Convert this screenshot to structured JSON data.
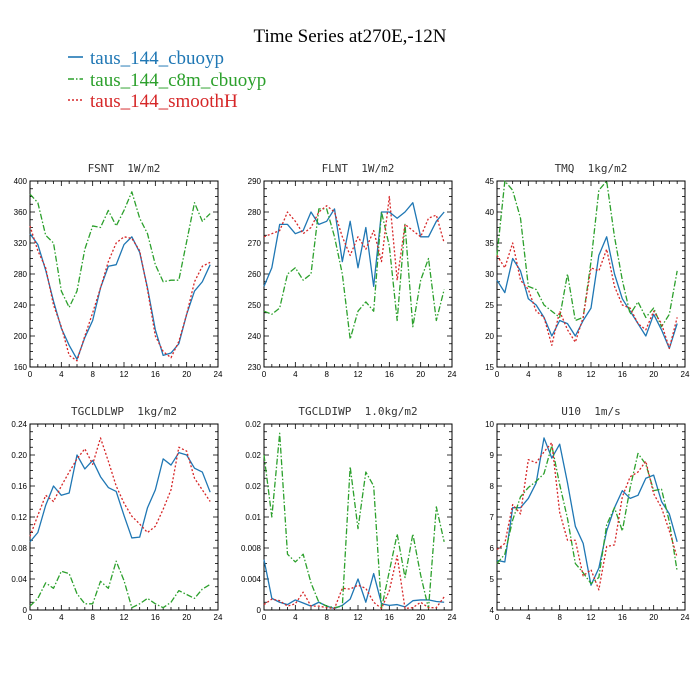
{
  "figure": {
    "title": "Time Series at270E,-12N",
    "legend": [
      {
        "name": "taus_144_cbuoyp",
        "color": "#1f77b4",
        "dash": "solid"
      },
      {
        "name": "taus_144_c8m_cbuoyp",
        "color": "#2ca02c",
        "dash": "dashdot"
      },
      {
        "name": "taus_144_smoothH",
        "color": "#d62728",
        "dash": "dotted"
      }
    ]
  },
  "chart_data": [
    {
      "type": "line",
      "title": "FSNT  1W/m2",
      "x": [
        0,
        1,
        2,
        3,
        4,
        5,
        6,
        7,
        8,
        9,
        10,
        11,
        12,
        13,
        14,
        15,
        16,
        17,
        18,
        19,
        20,
        21,
        22,
        23
      ],
      "xlim": [
        0,
        24
      ],
      "xticks": [
        0,
        4,
        8,
        12,
        16,
        20,
        24
      ],
      "ylim": [
        160,
        400
      ],
      "yticks": [
        160,
        200,
        240,
        280,
        320,
        360,
        400
      ],
      "series": [
        {
          "name": "taus_144_cbuoyp",
          "values": [
            332,
            318,
            285,
            245,
            210,
            188,
            170,
            198,
            220,
            262,
            290,
            292,
            318,
            328,
            308,
            262,
            208,
            175,
            178,
            190,
            228,
            258,
            270,
            292
          ]
        },
        {
          "name": "taus_144_c8m_cbuoyp",
          "values": [
            383,
            372,
            330,
            320,
            258,
            237,
            258,
            312,
            342,
            340,
            362,
            342,
            362,
            386,
            352,
            332,
            292,
            270,
            272,
            272,
            322,
            372,
            348,
            358
          ]
        },
        {
          "name": "taus_144_smoothH",
          "values": [
            342,
            310,
            288,
            240,
            212,
            175,
            168,
            200,
            230,
            262,
            296,
            320,
            328,
            326,
            310,
            260,
            200,
            180,
            172,
            193,
            228,
            270,
            290,
            295
          ]
        }
      ]
    },
    {
      "type": "line",
      "title": "FLNT  1W/m2",
      "x": [
        0,
        1,
        2,
        3,
        4,
        5,
        6,
        7,
        8,
        9,
        10,
        11,
        12,
        13,
        14,
        15,
        16,
        17,
        18,
        19,
        20,
        21,
        22,
        23
      ],
      "xlim": [
        0,
        24
      ],
      "xticks": [
        0,
        4,
        8,
        12,
        16,
        20,
        24
      ],
      "ylim": [
        230,
        290
      ],
      "yticks": [
        230,
        240,
        250,
        260,
        270,
        280,
        290
      ],
      "series": [
        {
          "name": "taus_144_cbuoyp",
          "values": [
            256,
            262,
            276,
            276,
            273,
            274,
            280,
            276,
            277,
            281,
            264,
            277,
            262,
            275,
            256,
            280,
            280,
            278,
            280,
            283,
            272,
            272,
            277,
            280
          ]
        },
        {
          "name": "taus_144_c8m_cbuoyp",
          "values": [
            248,
            247,
            249,
            260,
            262,
            258,
            260,
            281,
            281,
            272,
            260,
            239,
            248,
            251,
            248,
            280,
            269,
            245,
            276,
            243,
            258,
            265,
            245,
            255
          ]
        },
        {
          "name": "taus_144_smoothH",
          "values": [
            272,
            273,
            274,
            280,
            277,
            273,
            275,
            280,
            282,
            280,
            272,
            266,
            272,
            268,
            274,
            264,
            285,
            258,
            276,
            274,
            272,
            278,
            279,
            270
          ]
        }
      ]
    },
    {
      "type": "line",
      "title": "TMQ  1kg/m2",
      "x": [
        0,
        1,
        2,
        3,
        4,
        5,
        6,
        7,
        8,
        9,
        10,
        11,
        12,
        13,
        14,
        15,
        16,
        17,
        18,
        19,
        20,
        21,
        22,
        23
      ],
      "xlim": [
        0,
        24
      ],
      "xticks": [
        0,
        4,
        8,
        12,
        16,
        20,
        24
      ],
      "ylim": [
        15,
        45
      ],
      "yticks": [
        15,
        20,
        25,
        30,
        35,
        40,
        45
      ],
      "series": [
        {
          "name": "taus_144_cbuoyp",
          "values": [
            29,
            27,
            32.5,
            30.5,
            26,
            25,
            23,
            20,
            22.5,
            22,
            20,
            22.5,
            24.5,
            33,
            36,
            30,
            26,
            24,
            22,
            20,
            23.5,
            21,
            18,
            22
          ]
        },
        {
          "name": "taus_144_c8m_cbuoyp",
          "values": [
            33,
            45,
            43.5,
            39,
            28,
            27.5,
            25,
            24,
            23,
            30,
            22.5,
            23,
            32,
            43.5,
            45,
            36,
            29,
            23.5,
            25.5,
            23,
            24.5,
            21.5,
            23.5,
            30.5
          ]
        },
        {
          "name": "taus_144_smoothH",
          "values": [
            33,
            31,
            35,
            29,
            27.5,
            24,
            23,
            18.5,
            24,
            21,
            19,
            23,
            31,
            30.5,
            34,
            28,
            25,
            24.5,
            22,
            21,
            24,
            22,
            18,
            23
          ]
        }
      ]
    },
    {
      "type": "line",
      "title": "TGCLDLWP  1kg/m2",
      "x": [
        0,
        1,
        2,
        3,
        4,
        5,
        6,
        7,
        8,
        9,
        10,
        11,
        12,
        13,
        14,
        15,
        16,
        17,
        18,
        19,
        20,
        21,
        22,
        23
      ],
      "xlim": [
        0,
        24
      ],
      "xticks": [
        0,
        4,
        8,
        12,
        16,
        20,
        24
      ],
      "ylim": [
        0,
        0.24
      ],
      "yticks": [
        0,
        0.04,
        0.08,
        0.12,
        0.16,
        0.2,
        0.24
      ],
      "series": [
        {
          "name": "taus_144_cbuoyp",
          "values": [
            0.088,
            0.1,
            0.135,
            0.16,
            0.148,
            0.151,
            0.2,
            0.182,
            0.193,
            0.172,
            0.158,
            0.153,
            0.122,
            0.093,
            0.094,
            0.132,
            0.155,
            0.195,
            0.187,
            0.203,
            0.2,
            0.183,
            0.178,
            0.152
          ]
        },
        {
          "name": "taus_144_c8m_cbuoyp",
          "values": [
            0.005,
            0.015,
            0.035,
            0.028,
            0.05,
            0.047,
            0.021,
            0.008,
            0.008,
            0.037,
            0.028,
            0.063,
            0.038,
            0.003,
            0.008,
            0.015,
            0.008,
            0.003,
            0.01,
            0.025,
            0.02,
            0.015,
            0.027,
            0.033
          ]
        },
        {
          "name": "taus_144_smoothH",
          "values": [
            0.095,
            0.122,
            0.148,
            0.14,
            0.16,
            0.178,
            0.195,
            0.208,
            0.188,
            0.222,
            0.192,
            0.16,
            0.138,
            0.121,
            0.111,
            0.1,
            0.108,
            0.13,
            0.155,
            0.21,
            0.205,
            0.17,
            0.155,
            0.14
          ]
        }
      ]
    },
    {
      "type": "line",
      "title": "TGCLDIWP  1.0kg/m2",
      "x": [
        0,
        1,
        2,
        3,
        4,
        5,
        6,
        7,
        8,
        9,
        10,
        11,
        12,
        13,
        14,
        15,
        16,
        17,
        18,
        19,
        20,
        21,
        22,
        23
      ],
      "xlim": [
        0,
        24
      ],
      "xticks": [
        0,
        4,
        8,
        12,
        16,
        20,
        24
      ],
      "ylim": [
        0,
        0.024
      ],
      "yticks": [
        0,
        0.004,
        0.008,
        0.012,
        0.016,
        0.02,
        0.024
      ],
      "series": [
        {
          "name": "taus_144_cbuoyp",
          "values": [
            0.0065,
            0.0015,
            0.001,
            0.0007,
            0.0013,
            0.0009,
            0.0005,
            0.001,
            0.0005,
            0.0002,
            0.0006,
            0.0014,
            0.004,
            0.001,
            0.0047,
            0.0008,
            0.0006,
            0.0007,
            0.0004,
            0.0012,
            0.0013,
            0.0013,
            0.0011,
            0.001
          ]
        },
        {
          "name": "taus_144_c8m_cbuoyp",
          "values": [
            0.02,
            0.012,
            0.0228,
            0.0072,
            0.0062,
            0.0072,
            0.0035,
            0.001,
            0.0005,
            0.0003,
            0.0005,
            0.0185,
            0.0105,
            0.0178,
            0.016,
            0.0002,
            0.005,
            0.0098,
            0.0042,
            0.0098,
            0.0045,
            0.0002,
            0.0133,
            0.0088
          ]
        },
        {
          "name": "taus_144_smoothH",
          "values": [
            0.0007,
            0.0014,
            0.0012,
            0.0005,
            0.0008,
            0.0023,
            0.0005,
            0.0005,
            0.0003,
            0.0002,
            0.0028,
            0.0027,
            0.0032,
            0.0028,
            0.001,
            0.0002,
            0.0025,
            0.007,
            0.0002,
            0.0003,
            0.001,
            0.0003,
            0.0003,
            0.0017
          ]
        }
      ]
    },
    {
      "type": "line",
      "title": "U10  1m/s",
      "x": [
        0,
        1,
        2,
        3,
        4,
        5,
        6,
        7,
        8,
        9,
        10,
        11,
        12,
        13,
        14,
        15,
        16,
        17,
        18,
        19,
        20,
        21,
        22,
        23
      ],
      "xlim": [
        0,
        24
      ],
      "xticks": [
        0,
        4,
        8,
        12,
        16,
        20,
        24
      ],
      "ylim": [
        4,
        10
      ],
      "yticks": [
        4,
        5,
        6,
        7,
        8,
        9,
        10
      ],
      "series": [
        {
          "name": "taus_144_cbuoyp",
          "values": [
            5.6,
            5.55,
            7.3,
            7.3,
            7.6,
            8.1,
            9.55,
            8.9,
            9.35,
            8.1,
            6.7,
            6.15,
            4.8,
            5.35,
            6.55,
            7.3,
            7.85,
            7.6,
            7.7,
            8.25,
            8.35,
            7.5,
            7.1,
            6.2
          ]
        },
        {
          "name": "taus_144_c8m_cbuoyp",
          "values": [
            5.5,
            5.8,
            6.9,
            7.65,
            7.95,
            8.15,
            8.4,
            9.3,
            8.05,
            6.95,
            5.5,
            5.2,
            4.85,
            5.05,
            6.75,
            7.3,
            6.55,
            7.95,
            9.05,
            8.7,
            7.85,
            7.9,
            6.85,
            5.25
          ]
        },
        {
          "name": "taus_144_smoothH",
          "values": [
            5.95,
            6.15,
            7.4,
            7.1,
            8.85,
            8.75,
            9.1,
            9.4,
            7.15,
            6.25,
            6.25,
            5.1,
            5.3,
            4.65,
            6.05,
            6.1,
            7.65,
            8.3,
            8.45,
            8.8,
            7.75,
            7.3,
            6.55,
            5.7
          ]
        }
      ]
    }
  ]
}
